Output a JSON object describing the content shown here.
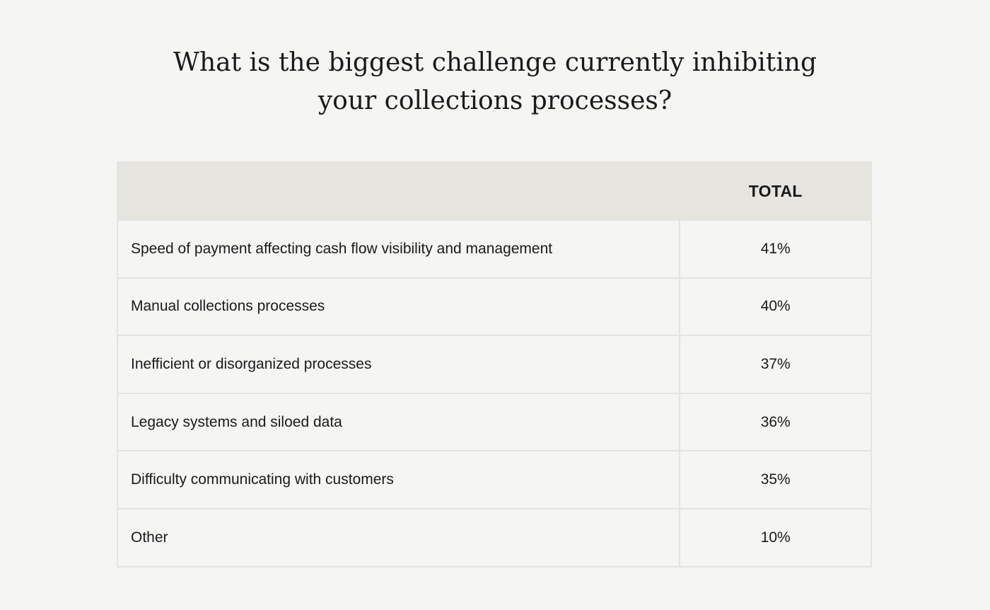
{
  "title": {
    "line1": "What is the biggest challenge currently inhibiting",
    "line2": "your collections processes?"
  },
  "chart_data": {
    "type": "table",
    "columns": [
      "",
      "TOTAL"
    ],
    "rows": [
      {
        "label": "Speed of payment affecting cash flow visibility and management",
        "value": "41%"
      },
      {
        "label": "Manual collections processes",
        "value": "40%"
      },
      {
        "label": "Inefficient or disorganized processes",
        "value": "37%"
      },
      {
        "label": "Legacy systems and siloed data",
        "value": "36%"
      },
      {
        "label": "Difficulty communicating with customers",
        "value": "35%"
      },
      {
        "label": "Other",
        "value": "10%"
      }
    ]
  },
  "colors": {
    "background": "#f5f5f3",
    "header_background": "#e5e4df",
    "border": "#e4e3df",
    "text": "#1a1a1a"
  }
}
